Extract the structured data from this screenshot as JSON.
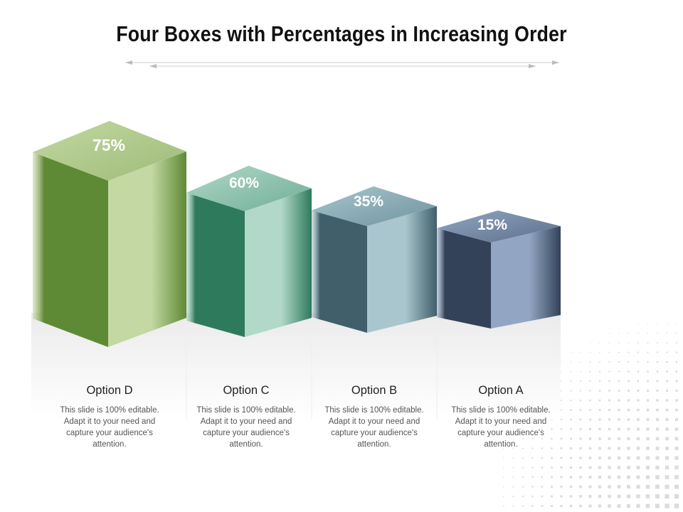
{
  "title": "Four Boxes with Percentages in Increasing Order",
  "boxes": [
    {
      "label": "75%",
      "value": 75,
      "option": "Option D",
      "description": "This slide is 100% editable. Adapt it to your need and capture your audience's attention.",
      "color_front": "#5f8a35",
      "color_side": "#c3d8a3",
      "color_top": "#9dbb77"
    },
    {
      "label": "60%",
      "value": 60,
      "option": "Option C",
      "description": "This slide is 100% editable. Adapt it to your need and capture your audience's attention.",
      "color_front": "#2e7a5c",
      "color_side": "#b1d8c9",
      "color_top": "#6fae97"
    },
    {
      "label": "35%",
      "value": 35,
      "option": "Option B",
      "description": "This slide is 100% editable. Adapt it to your need and capture your audience's attention.",
      "color_front": "#405f6a",
      "color_side": "#a9c6ce",
      "color_top": "#6f939e"
    },
    {
      "label": "15%",
      "value": 15,
      "option": "Option A",
      "description": "This slide is 100% editable. Adapt it to your need and capture your audience's attention.",
      "color_front": "#334259",
      "color_side": "#92a6c3",
      "color_top": "#5c6f8a"
    }
  ]
}
